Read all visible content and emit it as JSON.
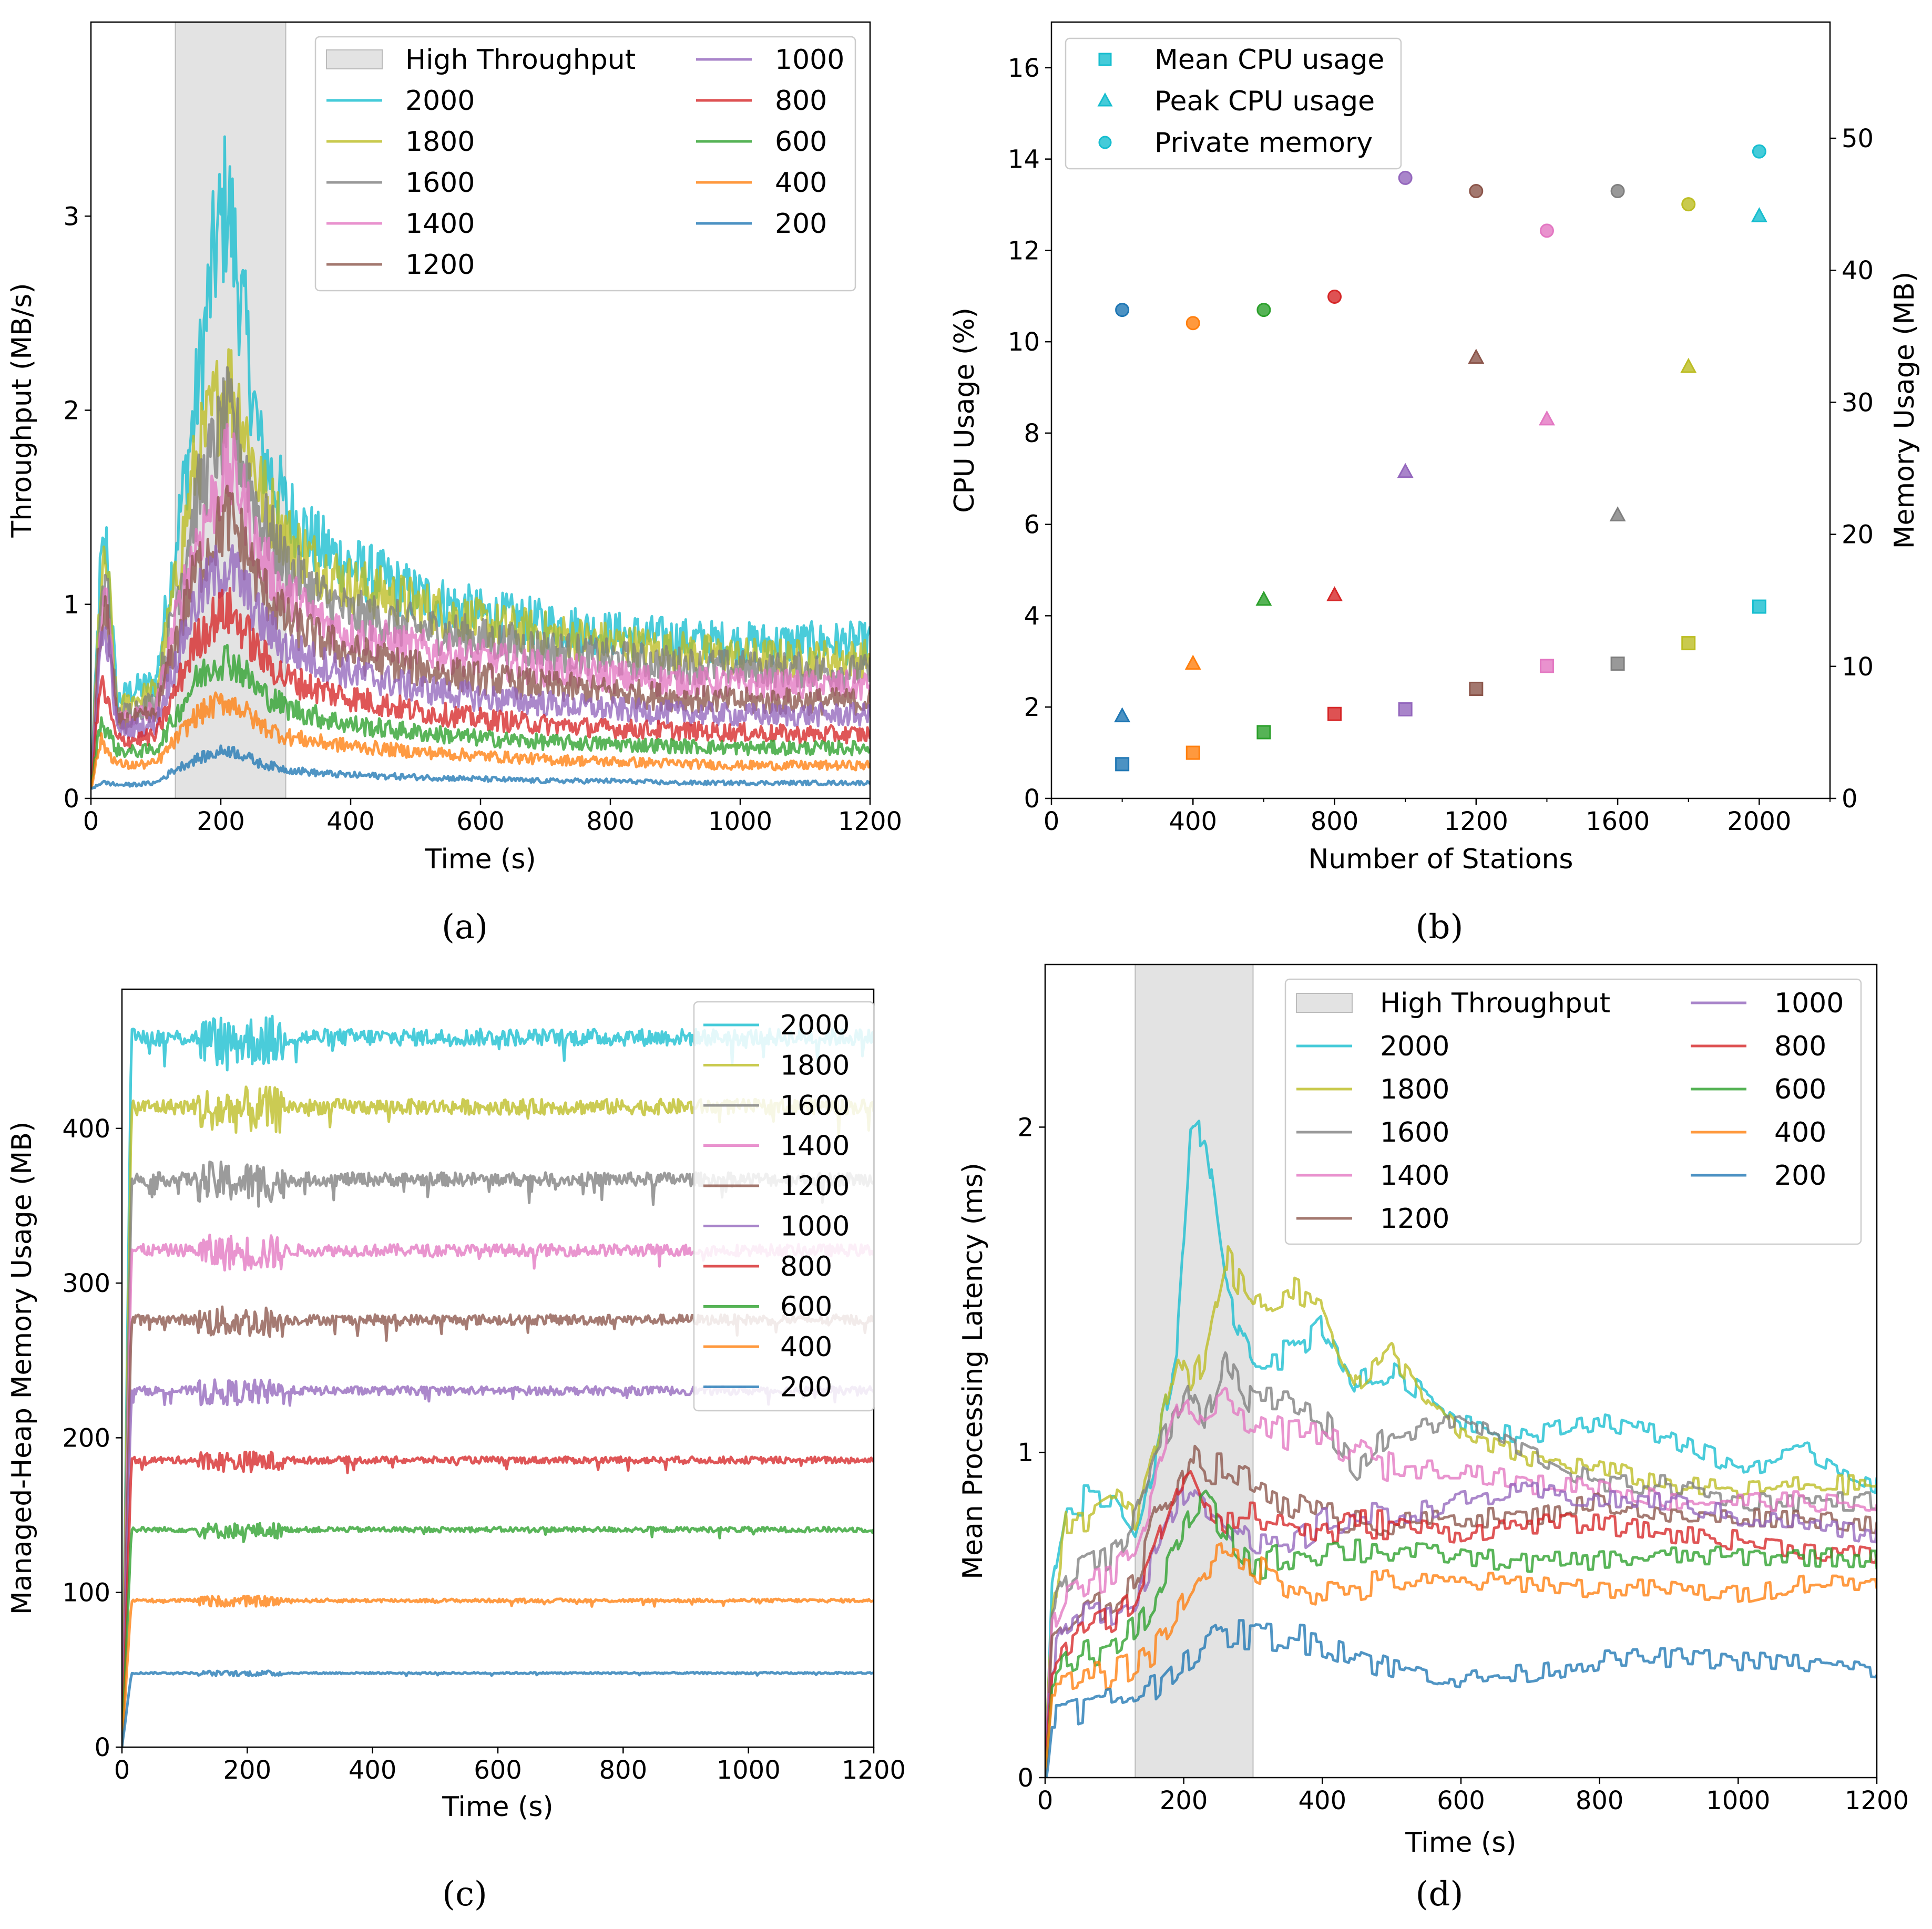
{
  "chart_data": [
    {
      "panel": "(a)",
      "type": "line",
      "xlabel": "Time (s)",
      "ylabel": "Throughput (MB/s)",
      "xlim": [
        0,
        1200
      ],
      "ylim": [
        0,
        4
      ],
      "xticks": [
        0,
        200,
        400,
        600,
        800,
        1000,
        1200
      ],
      "yticks": [
        0,
        1,
        2,
        3
      ],
      "shaded_region": {
        "label": "High Throughput",
        "x": [
          130,
          300
        ],
        "color": "#d9d9d9"
      },
      "legend_position": "top-right",
      "x": [
        0,
        15,
        25,
        40,
        60,
        100,
        130,
        160,
        190,
        210,
        230,
        260,
        300,
        350,
        400,
        500,
        600,
        700,
        800,
        900,
        1000,
        1100,
        1200
      ],
      "series": [
        {
          "name": "2000",
          "color": "#17becf",
          "values": [
            0.05,
            1.2,
            1.3,
            0.5,
            0.55,
            0.6,
            1.3,
            2.0,
            2.8,
            3.1,
            2.6,
            1.8,
            1.5,
            1.3,
            1.2,
            1.05,
            0.95,
            0.9,
            0.85,
            0.82,
            0.8,
            0.8,
            0.8
          ]
        },
        {
          "name": "1800",
          "color": "#bcbd22",
          "values": [
            0.05,
            1.1,
            1.2,
            0.45,
            0.5,
            0.55,
            1.1,
            1.7,
            2.0,
            2.15,
            2.0,
            1.6,
            1.35,
            1.2,
            1.1,
            1.0,
            0.9,
            0.85,
            0.8,
            0.76,
            0.73,
            0.72,
            0.72
          ]
        },
        {
          "name": "1600",
          "color": "#7f7f7f",
          "values": [
            0.05,
            1.0,
            1.1,
            0.42,
            0.45,
            0.5,
            1.0,
            1.5,
            1.8,
            1.95,
            1.8,
            1.45,
            1.2,
            1.05,
            0.95,
            0.88,
            0.82,
            0.77,
            0.72,
            0.69,
            0.67,
            0.66,
            0.65
          ]
        },
        {
          "name": "1400",
          "color": "#e377c2",
          "values": [
            0.05,
            0.9,
            1.0,
            0.4,
            0.42,
            0.45,
            0.9,
            1.3,
            1.55,
            1.7,
            1.6,
            1.25,
            1.05,
            0.92,
            0.85,
            0.77,
            0.72,
            0.67,
            0.63,
            0.6,
            0.59,
            0.58,
            0.58
          ]
        },
        {
          "name": "1200",
          "color": "#8c564b",
          "values": [
            0.05,
            0.85,
            0.95,
            0.38,
            0.4,
            0.42,
            0.8,
            1.15,
            1.35,
            1.45,
            1.35,
            1.1,
            0.92,
            0.82,
            0.75,
            0.67,
            0.62,
            0.58,
            0.55,
            0.52,
            0.5,
            0.5,
            0.5
          ]
        },
        {
          "name": "1000",
          "color": "#9467bd",
          "values": [
            0.05,
            0.8,
            0.85,
            0.35,
            0.36,
            0.38,
            0.7,
            1.0,
            1.15,
            1.2,
            1.12,
            0.92,
            0.78,
            0.7,
            0.65,
            0.57,
            0.52,
            0.49,
            0.46,
            0.44,
            0.43,
            0.43,
            0.43
          ]
        },
        {
          "name": "800",
          "color": "#d62728",
          "values": [
            0.05,
            0.6,
            0.5,
            0.3,
            0.3,
            0.32,
            0.55,
            0.8,
            0.93,
            0.97,
            0.9,
            0.74,
            0.62,
            0.56,
            0.52,
            0.45,
            0.41,
            0.38,
            0.36,
            0.35,
            0.34,
            0.33,
            0.33
          ]
        },
        {
          "name": "600",
          "color": "#2ca02c",
          "values": [
            0.05,
            0.4,
            0.35,
            0.25,
            0.24,
            0.25,
            0.42,
            0.6,
            0.7,
            0.72,
            0.67,
            0.55,
            0.47,
            0.42,
            0.38,
            0.34,
            0.31,
            0.29,
            0.28,
            0.27,
            0.26,
            0.26,
            0.26
          ]
        },
        {
          "name": "400",
          "color": "#ff7f0e",
          "values": [
            0.05,
            0.3,
            0.25,
            0.18,
            0.17,
            0.18,
            0.3,
            0.42,
            0.48,
            0.5,
            0.47,
            0.38,
            0.32,
            0.29,
            0.27,
            0.24,
            0.22,
            0.2,
            0.19,
            0.18,
            0.17,
            0.17,
            0.17
          ]
        },
        {
          "name": "200",
          "color": "#1f77b4",
          "values": [
            0.05,
            0.08,
            0.08,
            0.07,
            0.07,
            0.08,
            0.15,
            0.2,
            0.23,
            0.25,
            0.23,
            0.18,
            0.15,
            0.13,
            0.12,
            0.11,
            0.1,
            0.09,
            0.09,
            0.08,
            0.08,
            0.08,
            0.08
          ]
        }
      ]
    },
    {
      "panel": "(b)",
      "type": "scatter",
      "xlabel": "Number of Stations",
      "ylabel": "CPU Usage (%)",
      "y2label": "Memory Usage (MB)",
      "xlim": [
        0,
        2200
      ],
      "ylim": [
        0,
        17
      ],
      "y2lim": [
        0,
        58.8
      ],
      "xticks": [
        0,
        400,
        800,
        1200,
        1600,
        2000
      ],
      "yticks": [
        0,
        2,
        4,
        6,
        8,
        10,
        12,
        14,
        16
      ],
      "y2ticks": [
        0,
        10,
        20,
        30,
        40,
        50
      ],
      "legend_position": "top-left",
      "x": [
        200,
        400,
        600,
        800,
        1000,
        1200,
        1400,
        1600,
        1800,
        2000
      ],
      "colors": [
        "#1f77b4",
        "#ff7f0e",
        "#2ca02c",
        "#d62728",
        "#9467bd",
        "#8c564b",
        "#e377c2",
        "#7f7f7f",
        "#bcbd22",
        "#17becf"
      ],
      "series": [
        {
          "name": "Mean CPU usage",
          "marker": "square",
          "axis": "left",
          "values": [
            0.75,
            1.0,
            1.45,
            1.85,
            1.95,
            2.4,
            2.9,
            2.95,
            3.4,
            4.2
          ]
        },
        {
          "name": "Peak CPU usage",
          "marker": "triangle",
          "axis": "left",
          "values": [
            1.8,
            2.95,
            4.35,
            4.45,
            7.15,
            9.65,
            8.3,
            6.2,
            9.45,
            12.75
          ]
        },
        {
          "name": "Private memory",
          "marker": "circle",
          "axis": "right",
          "values": [
            37,
            36,
            37,
            38,
            47,
            46,
            43,
            46,
            45,
            49
          ]
        }
      ]
    },
    {
      "panel": "(c)",
      "type": "line",
      "xlabel": "Time (s)",
      "ylabel": "Managed-Heap Memory Usage (MB)",
      "xlim": [
        0,
        1200
      ],
      "ylim": [
        0,
        490
      ],
      "xticks": [
        0,
        200,
        400,
        600,
        800,
        1000,
        1200
      ],
      "yticks": [
        0,
        100,
        200,
        300,
        400
      ],
      "legend_position": "top-right",
      "series": [
        {
          "name": "2000",
          "color": "#17becf",
          "level": 460
        },
        {
          "name": "1800",
          "color": "#bcbd22",
          "level": 415
        },
        {
          "name": "1600",
          "color": "#7f7f7f",
          "level": 368
        },
        {
          "name": "1400",
          "color": "#e377c2",
          "level": 322
        },
        {
          "name": "1200",
          "color": "#8c564b",
          "level": 277
        },
        {
          "name": "1000",
          "color": "#9467bd",
          "level": 231
        },
        {
          "name": "800",
          "color": "#d62728",
          "level": 186
        },
        {
          "name": "600",
          "color": "#2ca02c",
          "level": 141
        },
        {
          "name": "400",
          "color": "#ff7f0e",
          "level": 95
        },
        {
          "name": "200",
          "color": "#1f77b4",
          "level": 48
        }
      ]
    },
    {
      "panel": "(d)",
      "type": "line",
      "xlabel": "Time (s)",
      "ylabel": "Mean Processing Latency (ms)",
      "xlim": [
        0,
        1200
      ],
      "ylim": [
        0,
        2.5
      ],
      "xticks": [
        0,
        200,
        400,
        600,
        800,
        1000,
        1200
      ],
      "yticks": [
        0,
        1,
        2
      ],
      "shaded_region": {
        "label": "High Throughput",
        "x": [
          130,
          300
        ],
        "color": "#d9d9d9"
      },
      "legend_position": "top-right",
      "x": [
        0,
        10,
        30,
        60,
        100,
        130,
        160,
        190,
        210,
        230,
        260,
        300,
        350,
        400,
        450,
        500,
        600,
        700,
        800,
        900,
        1000,
        1100,
        1200
      ],
      "series": [
        {
          "name": "2000",
          "color": "#17becf",
          "values": [
            0,
            0.6,
            0.85,
            0.85,
            0.85,
            0.75,
            1.0,
            1.3,
            1.95,
            2.0,
            1.5,
            1.3,
            1.3,
            1.4,
            1.2,
            1.25,
            1.1,
            1.05,
            1.1,
            1.05,
            0.95,
            1.0,
            0.9
          ]
        },
        {
          "name": "1800",
          "color": "#bcbd22",
          "values": [
            0,
            0.5,
            0.8,
            0.8,
            0.85,
            0.8,
            1.0,
            1.3,
            1.2,
            1.3,
            1.6,
            1.45,
            1.5,
            1.45,
            1.2,
            1.3,
            1.05,
            0.98,
            0.95,
            0.9,
            0.88,
            0.9,
            0.9
          ]
        },
        {
          "name": "1600",
          "color": "#7f7f7f",
          "values": [
            0,
            0.5,
            0.6,
            0.65,
            0.7,
            0.8,
            1.0,
            1.1,
            1.2,
            1.1,
            1.3,
            1.15,
            1.15,
            1.1,
            0.95,
            1.05,
            1.1,
            1.0,
            0.9,
            0.9,
            0.85,
            0.85,
            0.85
          ]
        },
        {
          "name": "1400",
          "color": "#e377c2",
          "values": [
            0,
            0.45,
            0.55,
            0.6,
            0.62,
            0.7,
            0.9,
            1.1,
            1.15,
            1.1,
            1.15,
            1.1,
            1.05,
            1.05,
            1.0,
            0.95,
            0.95,
            0.9,
            0.9,
            0.85,
            0.85,
            0.85,
            0.83
          ]
        },
        {
          "name": "1200",
          "color": "#8c564b",
          "values": [
            0,
            0.4,
            0.45,
            0.5,
            0.55,
            0.6,
            0.8,
            0.9,
            1.0,
            0.95,
            0.95,
            0.9,
            0.85,
            0.8,
            0.8,
            0.78,
            0.8,
            0.8,
            0.85,
            0.8,
            0.8,
            0.8,
            0.78
          ]
        },
        {
          "name": "1000",
          "color": "#9467bd",
          "values": [
            0,
            0.35,
            0.45,
            0.5,
            0.52,
            0.55,
            0.7,
            0.85,
            0.9,
            0.85,
            0.8,
            0.7,
            0.7,
            0.78,
            0.8,
            0.8,
            0.85,
            0.88,
            0.85,
            0.85,
            0.8,
            0.78,
            0.74
          ]
        },
        {
          "name": "800",
          "color": "#d62728",
          "values": [
            0,
            0.35,
            0.4,
            0.45,
            0.5,
            0.55,
            0.7,
            0.9,
            0.95,
            0.85,
            0.8,
            0.8,
            0.78,
            0.75,
            0.78,
            0.78,
            0.75,
            0.78,
            0.78,
            0.75,
            0.73,
            0.7,
            0.68
          ]
        },
        {
          "name": "600",
          "color": "#2ca02c",
          "values": [
            0,
            0.3,
            0.35,
            0.38,
            0.4,
            0.45,
            0.55,
            0.7,
            0.8,
            0.85,
            0.75,
            0.65,
            0.68,
            0.7,
            0.7,
            0.7,
            0.68,
            0.66,
            0.67,
            0.68,
            0.68,
            0.68,
            0.67
          ]
        },
        {
          "name": "400",
          "color": "#ff7f0e",
          "values": [
            0,
            0.28,
            0.28,
            0.3,
            0.32,
            0.35,
            0.4,
            0.5,
            0.58,
            0.65,
            0.68,
            0.65,
            0.6,
            0.57,
            0.58,
            0.6,
            0.6,
            0.6,
            0.58,
            0.58,
            0.56,
            0.6,
            0.6
          ]
        },
        {
          "name": "200",
          "color": "#1f77b4",
          "values": [
            0,
            0.2,
            0.2,
            0.22,
            0.24,
            0.26,
            0.28,
            0.35,
            0.38,
            0.4,
            0.44,
            0.44,
            0.43,
            0.42,
            0.38,
            0.34,
            0.3,
            0.32,
            0.36,
            0.37,
            0.36,
            0.35,
            0.33
          ]
        }
      ]
    }
  ]
}
